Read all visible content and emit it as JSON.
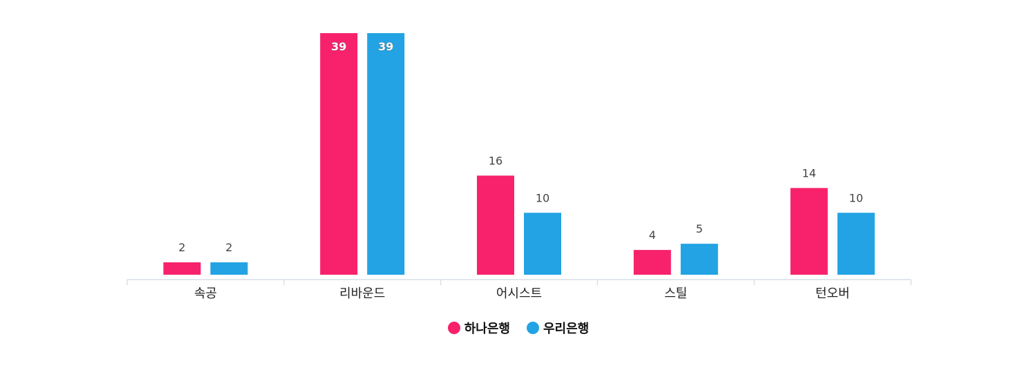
{
  "chart_data": {
    "type": "bar",
    "categories": [
      "속공",
      "리바운드",
      "어시스트",
      "스틸",
      "턴오버"
    ],
    "series": [
      {
        "name": "하나은행",
        "values": [
          2,
          39,
          16,
          4,
          14
        ],
        "color": "#f7226b"
      },
      {
        "name": "우리은행",
        "values": [
          2,
          39,
          10,
          5,
          10
        ],
        "color": "#23a3e3"
      }
    ],
    "ylim": [
      0,
      39
    ],
    "grid": false,
    "legend_position": "bottom-center"
  }
}
